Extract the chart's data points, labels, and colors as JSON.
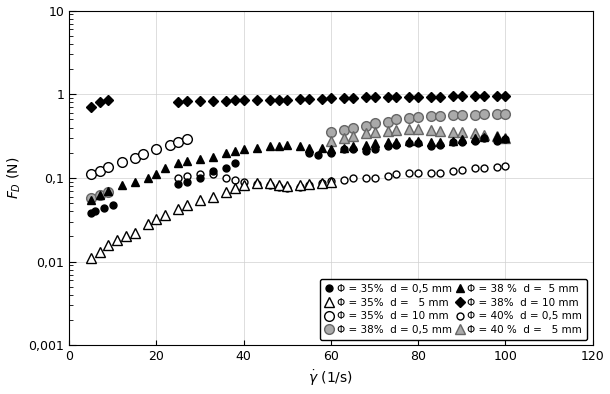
{
  "xlabel": "$\\dot{\\gamma}$ (1/s)",
  "ylabel": "$F_D$ (N)",
  "xlim": [
    0,
    120
  ],
  "ylim": [
    0.001,
    10
  ],
  "xticks": [
    0,
    20,
    40,
    60,
    80,
    100,
    120
  ],
  "ytick_labels": [
    "0,001",
    "0,01",
    "0,1",
    "1",
    "10"
  ],
  "ytick_vals": [
    0.001,
    0.01,
    0.1,
    1,
    10
  ],
  "series": [
    {
      "label_idx": 0,
      "marker": "o",
      "mfc": "black",
      "mec": "black",
      "ms": 5,
      "zorder": 5,
      "x": [
        5,
        6,
        8,
        10,
        25,
        27,
        30,
        33,
        36,
        38,
        55,
        57,
        60,
        63,
        65,
        68,
        70,
        73,
        75,
        78,
        80,
        83,
        85,
        88,
        90,
        93,
        95,
        98,
        100
      ],
      "y": [
        0.038,
        0.04,
        0.044,
        0.048,
        0.085,
        0.09,
        0.1,
        0.12,
        0.13,
        0.15,
        0.2,
        0.19,
        0.2,
        0.22,
        0.22,
        0.21,
        0.22,
        0.24,
        0.25,
        0.26,
        0.26,
        0.24,
        0.25,
        0.27,
        0.27,
        0.28,
        0.3,
        0.28,
        0.29
      ]
    },
    {
      "label_idx": 1,
      "marker": "o",
      "mfc": "white",
      "mec": "black",
      "ms": 7,
      "zorder": 4,
      "x": [
        5,
        7,
        9,
        12,
        15,
        17,
        20,
        23,
        25,
        27
      ],
      "y": [
        0.11,
        0.12,
        0.135,
        0.155,
        0.175,
        0.195,
        0.22,
        0.25,
        0.27,
        0.29
      ]
    },
    {
      "label_idx": 2,
      "marker": "^",
      "mfc": "black",
      "mec": "black",
      "ms": 6,
      "zorder": 5,
      "x": [
        5,
        7,
        9,
        12,
        15,
        18,
        20,
        22,
        25,
        27,
        30,
        33,
        36,
        38,
        40,
        43,
        46,
        48,
        50,
        53,
        55,
        58,
        60,
        63,
        65,
        68,
        70,
        73,
        75,
        78,
        80,
        83,
        85,
        88,
        90,
        93,
        95,
        98,
        100
      ],
      "y": [
        0.055,
        0.062,
        0.07,
        0.082,
        0.09,
        0.1,
        0.11,
        0.13,
        0.15,
        0.16,
        0.17,
        0.18,
        0.2,
        0.21,
        0.22,
        0.23,
        0.24,
        0.24,
        0.25,
        0.24,
        0.23,
        0.23,
        0.22,
        0.23,
        0.24,
        0.25,
        0.26,
        0.27,
        0.27,
        0.28,
        0.28,
        0.27,
        0.27,
        0.28,
        0.29,
        0.3,
        0.31,
        0.32,
        0.3
      ]
    },
    {
      "label_idx": 3,
      "marker": "o",
      "mfc": "white",
      "mec": "black",
      "ms": 5,
      "zorder": 3,
      "x": [
        25,
        27,
        30,
        33,
        36,
        38,
        40,
        43,
        46,
        48,
        50,
        53,
        55,
        58,
        60,
        63,
        65,
        68,
        70,
        73,
        75,
        78,
        80,
        83,
        85,
        88,
        90,
        93,
        95,
        98,
        100
      ],
      "y": [
        0.1,
        0.105,
        0.11,
        0.11,
        0.1,
        0.095,
        0.09,
        0.085,
        0.082,
        0.078,
        0.075,
        0.078,
        0.082,
        0.088,
        0.092,
        0.095,
        0.1,
        0.1,
        0.1,
        0.105,
        0.11,
        0.115,
        0.115,
        0.115,
        0.115,
        0.12,
        0.125,
        0.13,
        0.13,
        0.135,
        0.14
      ]
    },
    {
      "label_idx": 4,
      "marker": "^",
      "mfc": "white",
      "mec": "black",
      "ms": 7,
      "zorder": 3,
      "x": [
        5,
        7,
        9,
        11,
        13,
        15,
        18,
        20,
        22,
        25,
        27,
        30,
        33,
        36,
        38,
        40,
        43,
        46,
        48,
        50,
        53,
        55,
        58,
        60
      ],
      "y": [
        0.011,
        0.013,
        0.016,
        0.018,
        0.02,
        0.022,
        0.028,
        0.032,
        0.036,
        0.043,
        0.048,
        0.055,
        0.06,
        0.068,
        0.075,
        0.082,
        0.088,
        0.088,
        0.082,
        0.08,
        0.082,
        0.085,
        0.088,
        0.09
      ]
    },
    {
      "label_idx": 5,
      "marker": "o",
      "mfc": "#aaaaaa",
      "mec": "#666666",
      "ms": 7,
      "zorder": 4,
      "x": [
        5,
        7,
        9,
        60,
        63,
        65,
        68,
        70,
        73,
        75,
        78,
        80,
        83,
        85,
        88,
        90,
        93,
        95,
        98,
        100
      ],
      "y": [
        0.058,
        0.063,
        0.068,
        0.35,
        0.37,
        0.4,
        0.42,
        0.45,
        0.47,
        0.5,
        0.52,
        0.54,
        0.55,
        0.55,
        0.56,
        0.57,
        0.57,
        0.58,
        0.58,
        0.58
      ]
    },
    {
      "label_idx": 6,
      "marker": "D",
      "mfc": "black",
      "mec": "black",
      "ms": 5,
      "zorder": 6,
      "x": [
        5,
        7,
        9,
        25,
        27,
        30,
        33,
        36,
        38,
        40,
        43,
        46,
        48,
        50,
        53,
        55,
        58,
        60,
        63,
        65,
        68,
        70,
        73,
        75,
        78,
        80,
        83,
        85,
        88,
        90,
        93,
        95,
        98,
        100
      ],
      "y": [
        0.7,
        0.8,
        0.85,
        0.8,
        0.82,
        0.83,
        0.84,
        0.84,
        0.85,
        0.86,
        0.86,
        0.85,
        0.85,
        0.86,
        0.87,
        0.87,
        0.88,
        0.89,
        0.9,
        0.91,
        0.92,
        0.92,
        0.93,
        0.93,
        0.93,
        0.93,
        0.94,
        0.94,
        0.95,
        0.95,
        0.96,
        0.96,
        0.95,
        0.95
      ]
    },
    {
      "label_idx": 7,
      "marker": "^",
      "mfc": "#aaaaaa",
      "mec": "#666666",
      "ms": 7,
      "zorder": 4,
      "x": [
        60,
        63,
        65,
        68,
        70,
        73,
        75,
        78,
        80,
        83,
        85,
        88,
        90,
        93,
        95,
        98,
        100
      ],
      "y": [
        0.28,
        0.3,
        0.32,
        0.34,
        0.35,
        0.36,
        0.37,
        0.38,
        0.38,
        0.37,
        0.36,
        0.35,
        0.35,
        0.34,
        0.33,
        0.32,
        0.3
      ]
    }
  ],
  "legend_labels_left": [
    "Φ = 35%  d = 0,5 mm",
    "Φ = 35%  d = 10 mm",
    "Φ = 38 %  d =  5 mm",
    "Φ = 40%  d = 0,5 mm"
  ],
  "legend_labels_right": [
    "Φ = 35%  d =   5 mm",
    "Φ = 38%  d = 0,5 mm",
    "Φ = 38%  d = 10 mm",
    "Φ = 40 %  d =   5 mm"
  ],
  "legend_order": [
    0,
    4,
    1,
    5,
    2,
    6,
    3,
    7
  ]
}
